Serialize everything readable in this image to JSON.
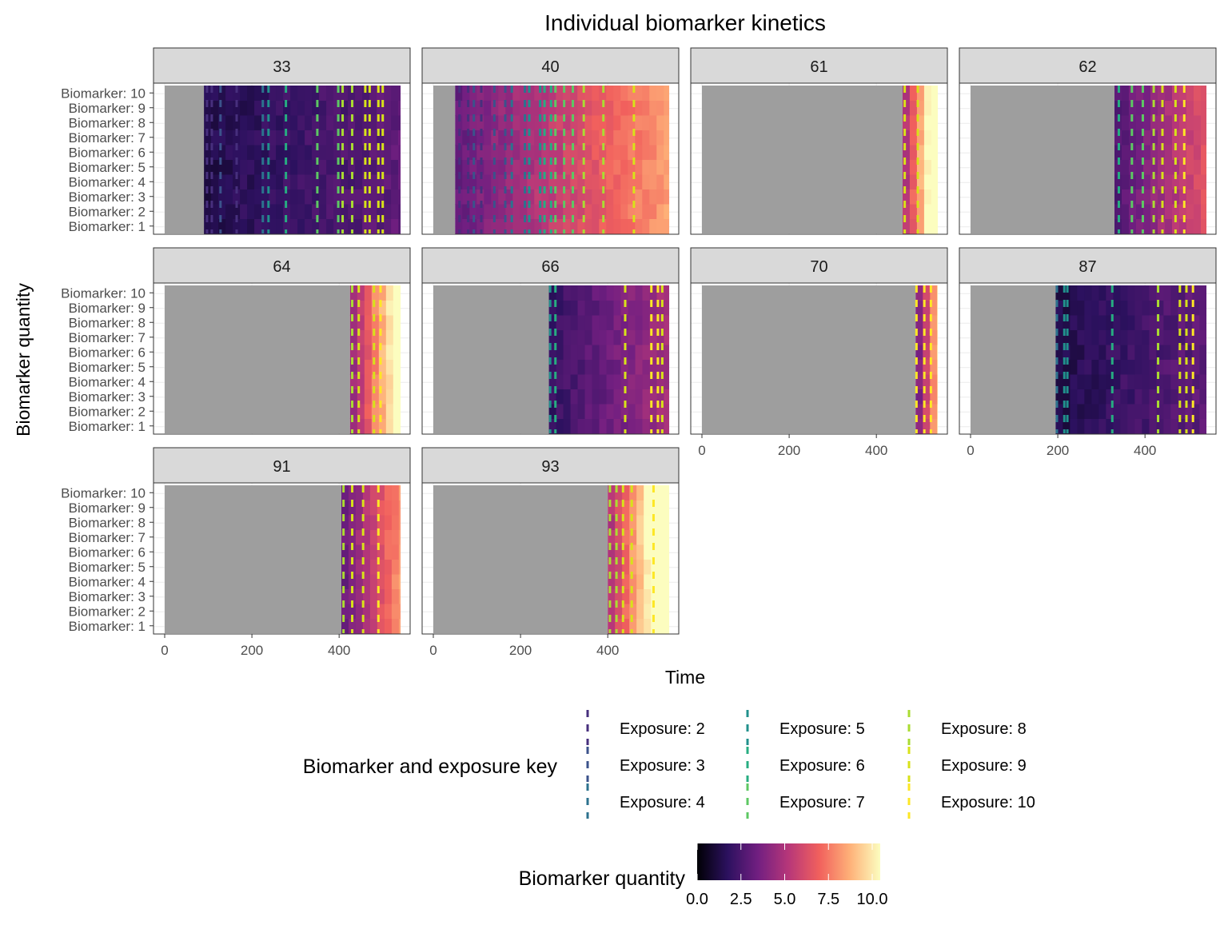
{
  "chart_data": {
    "type": "heatmap",
    "title": "Individual biomarker kinetics",
    "xlabel": "Time",
    "ylabel": "Biomarker quantity",
    "xlim": [
      0,
      550
    ],
    "x_ticks": [
      0,
      200,
      400
    ],
    "y_categories": [
      "Biomarker: 1",
      "Biomarker: 2",
      "Biomarker: 3",
      "Biomarker: 4",
      "Biomarker: 5",
      "Biomarker: 6",
      "Biomarker: 7",
      "Biomarker: 8",
      "Biomarker: 9",
      "Biomarker: 10"
    ],
    "grid": true,
    "panels": [
      {
        "id": "33",
        "start": 90,
        "end": 540,
        "exposures": [
          {
            "e": 2,
            "t": [
              97,
              108,
              165
            ]
          },
          {
            "e": 3,
            "t": [
              128
            ]
          },
          {
            "e": 4,
            "t": [
              225
            ]
          },
          {
            "e": 5,
            "t": [
              238
            ]
          },
          {
            "e": 6,
            "t": [
              278
            ]
          },
          {
            "e": 7,
            "t": [
              350,
              398
            ]
          },
          {
            "e": 8,
            "t": [
              408,
              430
            ]
          },
          {
            "e": 9,
            "t": [
              460,
              470,
              490,
              500
            ]
          },
          {
            "e": 10,
            "t": []
          }
        ]
      },
      {
        "id": "40",
        "start": 50,
        "end": 540,
        "exposures": [
          {
            "e": 2,
            "t": [
              60,
              80,
              110
            ]
          },
          {
            "e": 3,
            "t": [
              93,
              140,
              165
            ]
          },
          {
            "e": 4,
            "t": [
              180,
              210
            ]
          },
          {
            "e": 5,
            "t": [
              220,
              245
            ]
          },
          {
            "e": 6,
            "t": [
              255,
              270
            ]
          },
          {
            "e": 7,
            "t": [
              280,
              300,
              320
            ]
          },
          {
            "e": 8,
            "t": [
              345,
              390
            ]
          },
          {
            "e": 9,
            "t": [
              460
            ]
          },
          {
            "e": 10,
            "t": []
          }
        ]
      },
      {
        "id": "61",
        "start": 460,
        "end": 540,
        "exposures": [
          {
            "e": 9,
            "t": [
              465,
              495
            ]
          }
        ]
      },
      {
        "id": "62",
        "start": 330,
        "end": 540,
        "exposures": [
          {
            "e": 6,
            "t": [
              340
            ]
          },
          {
            "e": 7,
            "t": [
              370,
              395
            ]
          },
          {
            "e": 8,
            "t": [
              420
            ]
          },
          {
            "e": 9,
            "t": [
              440,
              470
            ]
          },
          {
            "e": 10,
            "t": [
              490
            ]
          }
        ]
      },
      {
        "id": "64",
        "start": 425,
        "end": 540,
        "exposures": [
          {
            "e": 8,
            "t": [
              430
            ]
          },
          {
            "e": 9,
            "t": [
              445,
              480
            ]
          },
          {
            "e": 10,
            "t": [
              495
            ]
          }
        ]
      },
      {
        "id": "66",
        "start": 265,
        "end": 540,
        "exposures": [
          {
            "e": 5,
            "t": [
              268
            ]
          },
          {
            "e": 6,
            "t": [
              280
            ]
          },
          {
            "e": 9,
            "t": [
              440
            ]
          },
          {
            "e": 10,
            "t": [
              500,
              515
            ]
          },
          {
            "e": 9,
            "t": [
              525
            ]
          }
        ]
      },
      {
        "id": "70",
        "start": 490,
        "end": 540,
        "exposures": [
          {
            "e": 10,
            "t": [
              492,
              510,
              525
            ]
          }
        ]
      },
      {
        "id": "87",
        "start": 195,
        "end": 540,
        "exposures": [
          {
            "e": 4,
            "t": [
              198
            ]
          },
          {
            "e": 5,
            "t": [
              215,
              222
            ]
          },
          {
            "e": 6,
            "t": [
              325
            ]
          },
          {
            "e": 8,
            "t": [
              430
            ]
          },
          {
            "e": 9,
            "t": [
              480,
              495
            ]
          },
          {
            "e": 10,
            "t": [
              510
            ]
          }
        ]
      },
      {
        "id": "91",
        "start": 405,
        "end": 540,
        "exposures": [
          {
            "e": 8,
            "t": [
              410
            ]
          },
          {
            "e": 9,
            "t": [
              430,
              455
            ]
          },
          {
            "e": 10,
            "t": [
              490
            ]
          }
        ]
      },
      {
        "id": "93",
        "start": 400,
        "end": 540,
        "exposures": [
          {
            "e": 8,
            "t": [
              405,
              420
            ]
          },
          {
            "e": 9,
            "t": [
              435,
              455
            ]
          },
          {
            "e": 10,
            "t": [
              505
            ]
          }
        ]
      }
    ],
    "legend_exposure": {
      "title": "Biomarker and exposure key",
      "items": [
        {
          "label": "Exposure: 2",
          "color": "#472f7d"
        },
        {
          "label": "Exposure: 3",
          "color": "#3b528b"
        },
        {
          "label": "Exposure: 4",
          "color": "#2c728e"
        },
        {
          "label": "Exposure: 5",
          "color": "#21908c"
        },
        {
          "label": "Exposure: 6",
          "color": "#27ad81"
        },
        {
          "label": "Exposure: 7",
          "color": "#5dc863"
        },
        {
          "label": "Exposure: 8",
          "color": "#aadc32"
        },
        {
          "label": "Exposure: 9",
          "color": "#d8e219"
        },
        {
          "label": "Exposure: 10",
          "color": "#fde725"
        }
      ]
    },
    "legend_color": {
      "title": "Biomarker quantity",
      "ticks": [
        "0.0",
        "2.5",
        "5.0",
        "7.5",
        "10.0"
      ],
      "range": [
        0,
        10
      ],
      "colors": [
        "#000004",
        "#2c115f",
        "#721f81",
        "#b73779",
        "#f1605d",
        "#feb078",
        "#fcfdbf"
      ]
    },
    "na_color": "#9e9e9e"
  }
}
